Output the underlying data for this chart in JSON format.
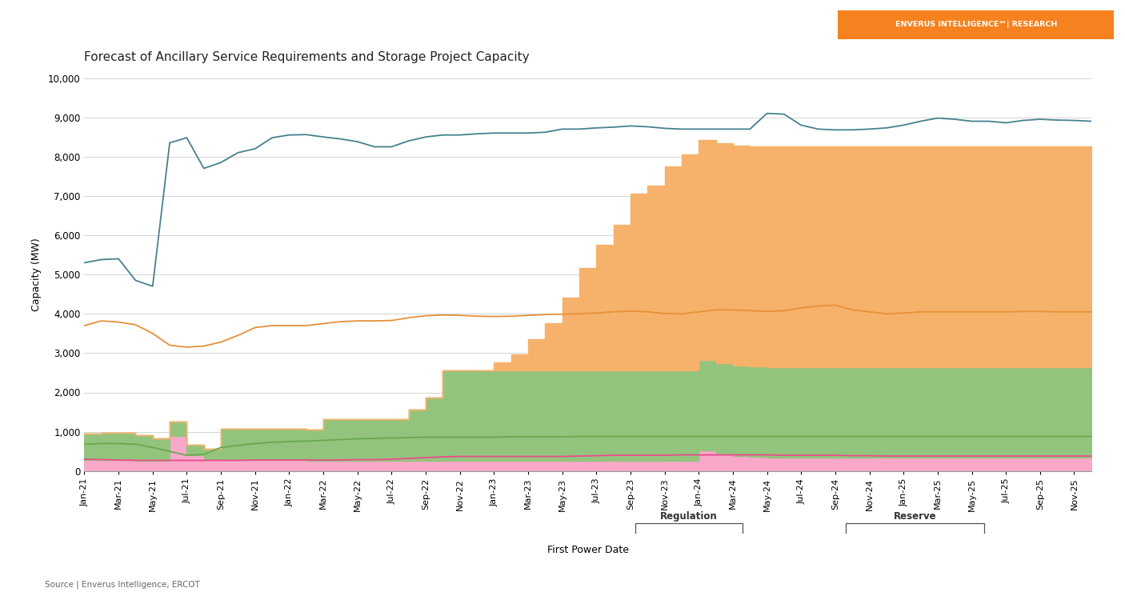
{
  "title": "Forecast of Ancillary Service Requirements and Storage Project Capacity",
  "xlabel": "First Power Date",
  "ylabel": "Capacity (MW)",
  "source": "Source | Enverus Intelligence, ERCOT",
  "header_text": "ENVERUS INTELLIGENCE℠| RESEARCH",
  "header_bg": "#F5821F",
  "header_text_color": "#FFFFFF",
  "ylim": [
    0,
    10000
  ],
  "yticks": [
    0,
    1000,
    2000,
    3000,
    4000,
    5000,
    6000,
    7000,
    8000,
    9000,
    10000
  ],
  "background_color": "#FFFFFF",
  "plot_bg": "#FFFFFF",
  "grid_color": "#CCCCCC",
  "colors": {
    "operating": "#F9A8C9",
    "under_construction": "#93C47D",
    "interconnection": "#F6B26B",
    "up": "#EA4C8B",
    "down": "#6AA84F",
    "responsive": "#E69138",
    "non_spinning": "#45818E"
  },
  "xtick_labels": [
    "Jan-21",
    "Mar-21",
    "May-21",
    "Jul-21",
    "Sep-21",
    "Nov-21",
    "Jan-22",
    "Mar-22",
    "May-22",
    "Jul-22",
    "Sep-22",
    "Nov-22",
    "Jan-23",
    "Mar-23",
    "May-23",
    "Jul-23",
    "Sep-23",
    "Nov-23",
    "Jan-24",
    "Mar-24",
    "May-24",
    "Jul-24",
    "Sep-24",
    "Nov-24",
    "Jan-25",
    "Mar-25",
    "May-25",
    "Jul-25",
    "Sep-25",
    "Nov-25"
  ],
  "operating_values": [
    280,
    280,
    270,
    250,
    260,
    900,
    400,
    300,
    280,
    270,
    270,
    270,
    270,
    260,
    260,
    260,
    260,
    260,
    260,
    260,
    260,
    260,
    260,
    260,
    260,
    260,
    260,
    260,
    260,
    260,
    260,
    260,
    260,
    260,
    260,
    260,
    530,
    440,
    380,
    360,
    350,
    350,
    350,
    350,
    350,
    350,
    350,
    350,
    350,
    350,
    350,
    350,
    350,
    350,
    350,
    350,
    350,
    350,
    350,
    350
  ],
  "under_construction_values": [
    680,
    700,
    710,
    670,
    560,
    350,
    270,
    270,
    800,
    800,
    800,
    800,
    800,
    800,
    1050,
    1050,
    1050,
    1050,
    1050,
    1300,
    1600,
    2300,
    2300,
    2300,
    2300,
    2300,
    2300,
    2300,
    2300,
    2300,
    2300,
    2300,
    2300,
    2300,
    2300,
    2300,
    2300,
    2300,
    2300,
    2300,
    2300,
    2300,
    2300,
    2300,
    2300,
    2300,
    2300,
    2300,
    2300,
    2300,
    2300,
    2300,
    2300,
    2300,
    2300,
    2300,
    2300,
    2300,
    2300,
    2300
  ],
  "interconnection_values": [
    0,
    0,
    0,
    0,
    0,
    0,
    0,
    0,
    0,
    0,
    0,
    0,
    0,
    0,
    0,
    0,
    0,
    0,
    0,
    0,
    0,
    0,
    0,
    0,
    200,
    400,
    800,
    1200,
    1850,
    2600,
    3200,
    3700,
    4500,
    4700,
    5200,
    5500,
    5600,
    5600,
    5600,
    5600,
    5600,
    5600,
    5600,
    5600,
    5600,
    5600,
    5600,
    5600,
    5600,
    5600,
    5600,
    5600,
    5600,
    5600,
    5600,
    5600,
    5600,
    5600,
    5600,
    5600
  ],
  "up_line": [
    300,
    290,
    280,
    270,
    270,
    270,
    270,
    270,
    270,
    270,
    280,
    280,
    280,
    280,
    280,
    280,
    290,
    290,
    300,
    320,
    340,
    360,
    370,
    370,
    370,
    370,
    370,
    370,
    370,
    380,
    390,
    400,
    400,
    400,
    400,
    410,
    410,
    410,
    410,
    410,
    410,
    400,
    400,
    400,
    400,
    390,
    390,
    380,
    380,
    380,
    380,
    380,
    380,
    380,
    380,
    380,
    380,
    380,
    380,
    380
  ],
  "down_line": [
    680,
    700,
    700,
    680,
    600,
    500,
    400,
    420,
    600,
    650,
    700,
    730,
    750,
    760,
    780,
    800,
    820,
    830,
    840,
    850,
    860,
    860,
    860,
    860,
    860,
    870,
    870,
    870,
    870,
    880,
    880,
    880,
    880,
    880,
    880,
    880,
    880,
    880,
    880,
    880,
    880,
    880,
    880,
    880,
    880,
    880,
    880,
    880,
    880,
    880,
    880,
    880,
    880,
    880,
    880,
    880,
    880,
    880,
    880,
    880
  ],
  "responsive_line": [
    3700,
    3820,
    3790,
    3720,
    3500,
    3200,
    3150,
    3180,
    3280,
    3450,
    3650,
    3700,
    3700,
    3700,
    3750,
    3800,
    3820,
    3820,
    3830,
    3900,
    3950,
    3970,
    3960,
    3940,
    3930,
    3940,
    3960,
    3980,
    3990,
    4000,
    4020,
    4050,
    4070,
    4050,
    4010,
    4000,
    4050,
    4100,
    4100,
    4080,
    4060,
    4080,
    4150,
    4200,
    4220,
    4100,
    4050,
    4000,
    4020,
    4050,
    4050,
    4050,
    4050,
    4050,
    4050,
    4060,
    4060,
    4050,
    4050,
    4050
  ],
  "non_spinning_line": [
    5300,
    5380,
    5400,
    4850,
    4700,
    8350,
    8480,
    7700,
    7850,
    8100,
    8200,
    8480,
    8550,
    8560,
    8500,
    8450,
    8380,
    8250,
    8250,
    8400,
    8500,
    8550,
    8550,
    8580,
    8600,
    8600,
    8600,
    8620,
    8700,
    8700,
    8730,
    8750,
    8780,
    8760,
    8720,
    8700,
    8700,
    8700,
    8700,
    8700,
    9100,
    9080,
    8800,
    8700,
    8680,
    8680,
    8700,
    8730,
    8800,
    8900,
    8980,
    8950,
    8900,
    8900,
    8860,
    8920,
    8950,
    8930,
    8920,
    8900
  ]
}
